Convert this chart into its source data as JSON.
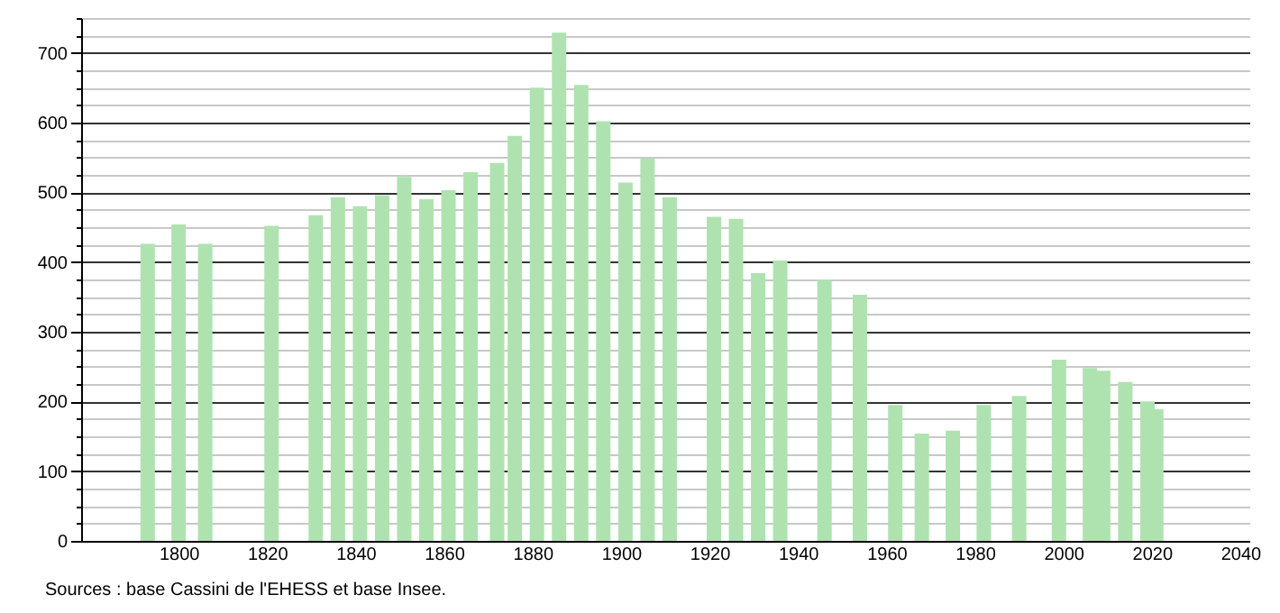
{
  "chart_data": {
    "type": "bar",
    "x": [
      1793,
      1800,
      1806,
      1821,
      1831,
      1836,
      1841,
      1846,
      1851,
      1856,
      1861,
      1866,
      1872,
      1876,
      1881,
      1886,
      1891,
      1896,
      1901,
      1906,
      1911,
      1921,
      1926,
      1931,
      1936,
      1946,
      1954,
      1962,
      1968,
      1975,
      1982,
      1990,
      1999,
      2006,
      2009,
      2014,
      2019,
      2021
    ],
    "values": [
      426,
      454,
      426,
      452,
      467,
      493,
      480,
      496,
      522,
      490,
      503,
      529,
      542,
      581,
      650,
      729,
      654,
      602,
      514,
      549,
      493,
      465,
      462,
      384,
      402,
      375,
      353,
      195,
      154,
      158,
      195,
      208,
      260,
      248,
      244,
      228,
      200,
      189
    ],
    "color": "#aee3b0",
    "xlim": [
      1780,
      2040
    ],
    "xticks": [
      1800,
      1820,
      1840,
      1860,
      1880,
      1900,
      1920,
      1940,
      1960,
      1980,
      2000,
      2020,
      2040
    ],
    "ylim": [
      0,
      750
    ],
    "yticks": [
      0,
      {
        "value": 25,
        "label": null
      },
      {
        "value": 50,
        "label": null
      },
      {
        "value": 75,
        "label": null
      },
      100,
      {
        "value": 125,
        "label": null
      },
      {
        "value": 150,
        "label": null
      },
      {
        "value": 175,
        "label": null
      },
      200,
      {
        "value": 225,
        "label": null
      },
      {
        "value": 250,
        "label": null
      },
      {
        "value": 275,
        "label": null
      },
      300,
      {
        "value": 325,
        "label": null
      },
      {
        "value": 350,
        "label": null
      },
      {
        "value": 375,
        "label": null
      },
      400,
      {
        "value": 425,
        "label": null
      },
      {
        "value": 450,
        "label": null
      },
      {
        "value": 475,
        "label": null
      },
      500,
      {
        "value": 525,
        "label": null
      },
      {
        "value": 550,
        "label": null
      },
      {
        "value": 575,
        "label": null
      },
      600,
      {
        "value": 625,
        "label": null
      },
      {
        "value": 650,
        "label": null
      },
      {
        "value": 675,
        "label": null
      },
      700,
      {
        "value": 725,
        "label": null
      },
      {
        "value": 750,
        "label": null
      }
    ],
    "grid": "y",
    "annotations": [
      "Sources : base Cassini de l'EHESS et base Insee."
    ]
  }
}
